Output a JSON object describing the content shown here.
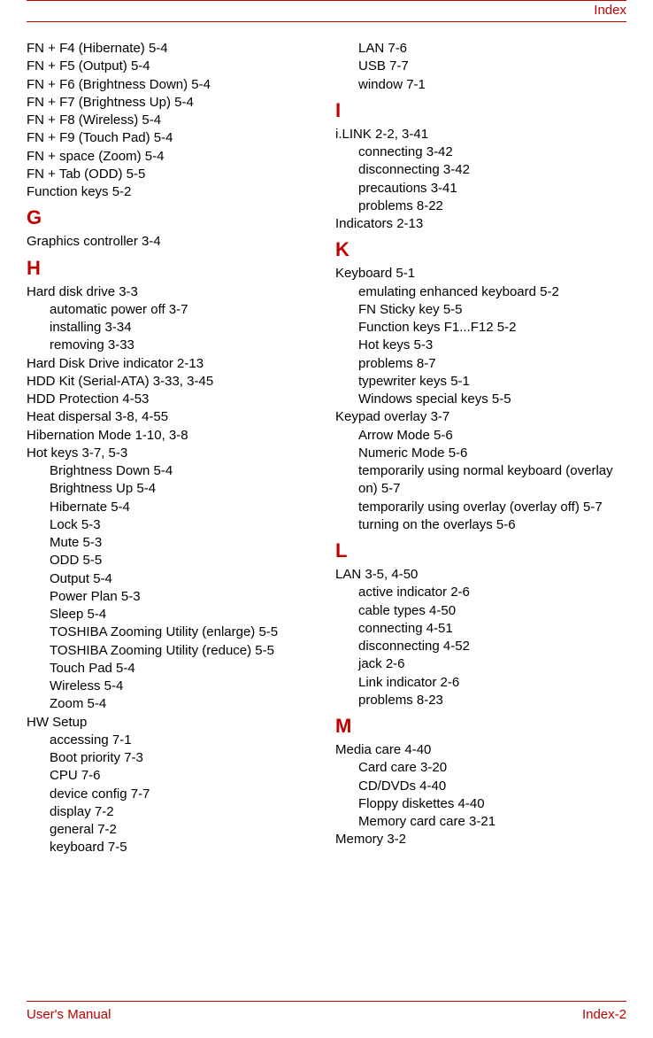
{
  "header": {
    "text": "Index"
  },
  "footer": {
    "left": "User's Manual",
    "right": "Index-2"
  },
  "columns": [
    {
      "blocks": [
        {
          "type": "entries",
          "items": [
            {
              "level": 0,
              "text": "FN + F4 (Hibernate) 5-4"
            },
            {
              "level": 0,
              "text": "FN + F5 (Output) 5-4"
            },
            {
              "level": 0,
              "text": "FN + F6 (Brightness Down) 5-4"
            },
            {
              "level": 0,
              "text": "FN + F7 (Brightness Up) 5-4"
            },
            {
              "level": 0,
              "text": "FN + F8 (Wireless) 5-4"
            },
            {
              "level": 0,
              "text": "FN + F9 (Touch Pad) 5-4"
            },
            {
              "level": 0,
              "text": "FN + space (Zoom) 5-4"
            },
            {
              "level": 0,
              "text": "FN + Tab (ODD) 5-5"
            },
            {
              "level": 0,
              "text": "Function keys 5-2"
            }
          ]
        },
        {
          "type": "letter",
          "text": "G"
        },
        {
          "type": "entries",
          "items": [
            {
              "level": 0,
              "text": "Graphics controller 3-4"
            }
          ]
        },
        {
          "type": "letter",
          "text": "H"
        },
        {
          "type": "entries",
          "items": [
            {
              "level": 0,
              "text": "Hard disk drive 3-3"
            },
            {
              "level": 1,
              "text": "automatic power off 3-7"
            },
            {
              "level": 1,
              "text": "installing 3-34"
            },
            {
              "level": 1,
              "text": "removing 3-33"
            },
            {
              "level": 0,
              "text": "Hard Disk Drive indicator 2-13"
            },
            {
              "level": 0,
              "text": "HDD Kit (Serial-ATA) 3-33, 3-45"
            },
            {
              "level": 0,
              "text": "HDD Protection 4-53"
            },
            {
              "level": 0,
              "text": "Heat dispersal 3-8, 4-55"
            },
            {
              "level": 0,
              "text": "Hibernation Mode 1-10, 3-8"
            },
            {
              "level": 0,
              "text": "Hot keys 3-7, 5-3"
            },
            {
              "level": 1,
              "text": "Brightness Down 5-4"
            },
            {
              "level": 1,
              "text": "Brightness Up 5-4"
            },
            {
              "level": 1,
              "text": "Hibernate 5-4"
            },
            {
              "level": 1,
              "text": "Lock 5-3"
            },
            {
              "level": 1,
              "text": "Mute 5-3"
            },
            {
              "level": 1,
              "text": "ODD 5-5"
            },
            {
              "level": 1,
              "text": "Output 5-4"
            },
            {
              "level": 1,
              "text": "Power Plan 5-3"
            },
            {
              "level": 1,
              "text": "Sleep 5-4"
            },
            {
              "level": 1,
              "text": "TOSHIBA Zooming Utility (enlarge) 5-5"
            },
            {
              "level": 1,
              "text": "TOSHIBA Zooming Utility (reduce) 5-5"
            },
            {
              "level": 1,
              "text": "Touch Pad 5-4"
            },
            {
              "level": 1,
              "text": "Wireless 5-4"
            },
            {
              "level": 1,
              "text": "Zoom 5-4"
            },
            {
              "level": 0,
              "text": "HW Setup"
            },
            {
              "level": 1,
              "text": "accessing 7-1"
            },
            {
              "level": 1,
              "text": "Boot priority 7-3"
            },
            {
              "level": 1,
              "text": "CPU 7-6"
            },
            {
              "level": 1,
              "text": "device config 7-7"
            },
            {
              "level": 1,
              "text": "display 7-2"
            },
            {
              "level": 1,
              "text": "general 7-2"
            },
            {
              "level": 1,
              "text": "keyboard 7-5"
            }
          ]
        }
      ]
    },
    {
      "blocks": [
        {
          "type": "entries",
          "items": [
            {
              "level": 1,
              "text": "LAN 7-6"
            },
            {
              "level": 1,
              "text": "USB 7-7"
            },
            {
              "level": 1,
              "text": "window 7-1"
            }
          ]
        },
        {
          "type": "letter",
          "text": "I"
        },
        {
          "type": "entries",
          "items": [
            {
              "level": 0,
              "text": "i.LINK 2-2, 3-41"
            },
            {
              "level": 1,
              "text": "connecting 3-42"
            },
            {
              "level": 1,
              "text": "disconnecting 3-42"
            },
            {
              "level": 1,
              "text": "precautions 3-41"
            },
            {
              "level": 1,
              "text": "problems 8-22"
            },
            {
              "level": 0,
              "text": "Indicators 2-13"
            }
          ]
        },
        {
          "type": "letter",
          "text": "K"
        },
        {
          "type": "entries",
          "items": [
            {
              "level": 0,
              "text": "Keyboard 5-1"
            },
            {
              "level": 1,
              "text": "emulating enhanced keyboard 5-2"
            },
            {
              "level": 1,
              "text": "FN Sticky key 5-5"
            },
            {
              "level": 1,
              "text": "Function keys F1...F12 5-2"
            },
            {
              "level": 1,
              "text": "Hot keys 5-3"
            },
            {
              "level": 1,
              "text": "problems 8-7"
            },
            {
              "level": 1,
              "text": "typewriter keys 5-1"
            },
            {
              "level": 1,
              "text": "Windows special keys 5-5"
            },
            {
              "level": 0,
              "text": "Keypad overlay 3-7"
            },
            {
              "level": 1,
              "text": "Arrow Mode 5-6"
            },
            {
              "level": 1,
              "text": "Numeric Mode 5-6"
            },
            {
              "level": 1,
              "text": "temporarily using normal keyboard (overlay on) 5-7"
            },
            {
              "level": 1,
              "text": "temporarily using overlay (overlay off) 5-7"
            },
            {
              "level": 1,
              "text": "turning on the overlays 5-6"
            }
          ]
        },
        {
          "type": "letter",
          "text": "L"
        },
        {
          "type": "entries",
          "items": [
            {
              "level": 0,
              "text": "LAN 3-5, 4-50"
            },
            {
              "level": 1,
              "text": "active indicator 2-6"
            },
            {
              "level": 1,
              "text": "cable types 4-50"
            },
            {
              "level": 1,
              "text": "connecting 4-51"
            },
            {
              "level": 1,
              "text": "disconnecting 4-52"
            },
            {
              "level": 1,
              "text": "jack 2-6"
            },
            {
              "level": 1,
              "text": "Link indicator 2-6"
            },
            {
              "level": 1,
              "text": "problems 8-23"
            }
          ]
        },
        {
          "type": "letter",
          "text": "M"
        },
        {
          "type": "entries",
          "items": [
            {
              "level": 0,
              "text": "Media care 4-40"
            },
            {
              "level": 1,
              "text": "Card care 3-20"
            },
            {
              "level": 1,
              "text": "CD/DVDs 4-40"
            },
            {
              "level": 1,
              "text": "Floppy diskettes 4-40"
            },
            {
              "level": 1,
              "text": "Memory card care 3-21"
            },
            {
              "level": 0,
              "text": "Memory 3-2"
            }
          ]
        }
      ]
    }
  ]
}
